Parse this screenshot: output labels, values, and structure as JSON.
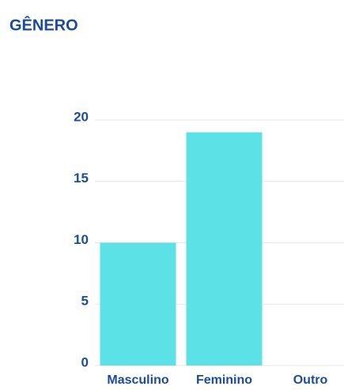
{
  "chart_data": {
    "type": "bar",
    "title": "GÊNERO",
    "categories": [
      "Masculino",
      "Feminino",
      "Outro"
    ],
    "values": [
      10,
      19,
      0
    ],
    "color": "#5ce1e6",
    "ylim": [
      0,
      20
    ],
    "yticks": [
      0,
      5,
      10,
      15,
      20
    ],
    "grid": true
  }
}
